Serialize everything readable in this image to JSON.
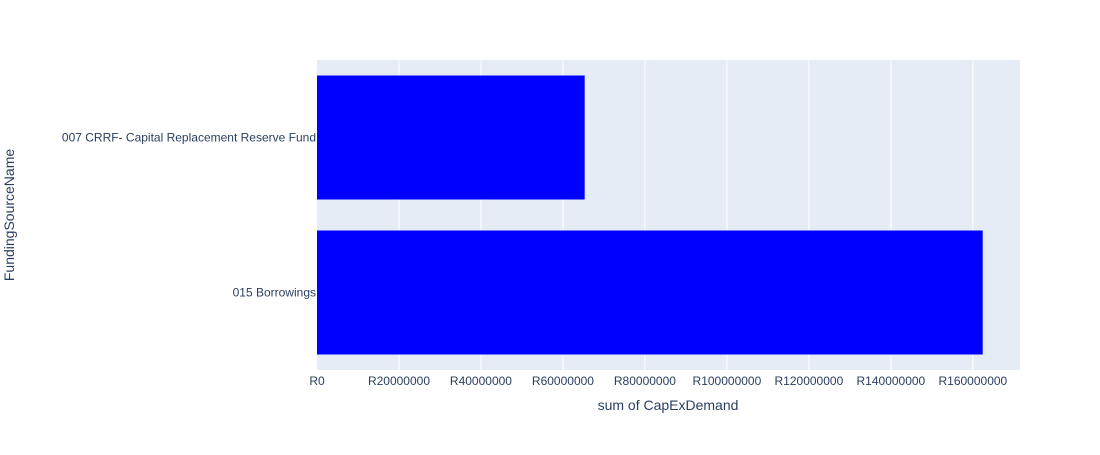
{
  "chart_data": {
    "type": "bar",
    "orientation": "horizontal",
    "categories": [
      "007 CRRF- Capital Replacement Reserve Fund",
      "015 Borrowings"
    ],
    "values": [
      65300000,
      162400000
    ],
    "xlabel": "sum of CapExDemand",
    "ylabel": "FundingSourceName",
    "xlim": [
      0,
      171500000
    ],
    "x_ticks": [
      0,
      20000000,
      40000000,
      60000000,
      80000000,
      100000000,
      120000000,
      140000000,
      160000000
    ],
    "x_tick_labels": [
      "R0",
      "R20000000",
      "R40000000",
      "R60000000",
      "R80000000",
      "R100000000",
      "R120000000",
      "R140000000",
      "R160000000"
    ],
    "grid": true,
    "legend": false,
    "bar_color": "#0000ff",
    "plot_background": "#e5ecf6",
    "grid_color": "#ffffff",
    "text_color": "#2a3f5f"
  }
}
